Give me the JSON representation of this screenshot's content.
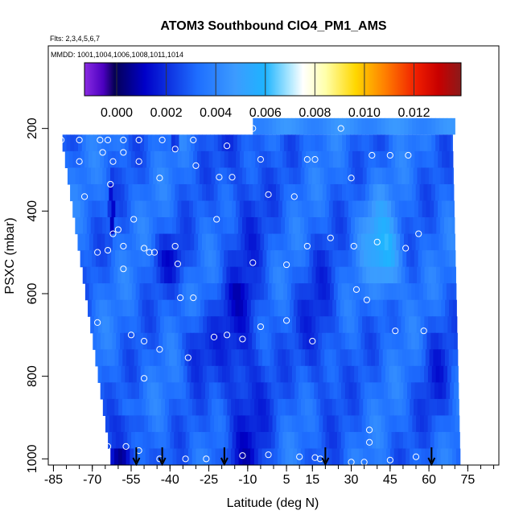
{
  "chart_data": {
    "type": "heatmap",
    "title": "ATOM3 Southbound ClO4_PM1_AMS",
    "info_flights": "Flts: 2,3,4,5,6,7",
    "info_dates": "MMDD: 1001,1004,1006,1008,1011,1014",
    "xlabel": "Latitude (deg N)",
    "ylabel": "PSXC (mbar)",
    "xlim": [
      -87,
      87
    ],
    "ylim": [
      1015,
      0
    ],
    "x_ticks": [
      -85,
      -70,
      -55,
      -40,
      -25,
      -10,
      5,
      15,
      30,
      45,
      60,
      75
    ],
    "x_tick_labels": [
      "-85",
      "-70",
      "-55",
      "-40",
      "-25",
      "-10",
      "5",
      "15",
      "30",
      "45",
      "60",
      "75"
    ],
    "y_ticks": [
      200,
      400,
      600,
      800,
      1000
    ],
    "y_tick_labels": [
      "200",
      "400",
      "600",
      "800",
      "1000"
    ],
    "colorbar": {
      "ticks": [
        0.0,
        0.002,
        0.004,
        0.006,
        0.008,
        0.01,
        0.012
      ],
      "tick_labels": [
        "0.000",
        "0.002",
        "0.004",
        "0.006",
        "0.008",
        "0.010",
        "0.012"
      ],
      "vmin": -0.0013,
      "vmax": 0.0139
    },
    "flight_markers_lat": [
      -53,
      -43,
      -19,
      20,
      61
    ],
    "sample_points": [
      [
        -82,
        228
      ],
      [
        -75,
        228
      ],
      [
        -67,
        228
      ],
      [
        -64,
        228
      ],
      [
        -58,
        228
      ],
      [
        -52,
        228
      ],
      [
        -43,
        228
      ],
      [
        -31,
        228
      ],
      [
        -8,
        200
      ],
      [
        26,
        200
      ],
      [
        76,
        200
      ],
      [
        -66,
        258
      ],
      [
        -58,
        258
      ],
      [
        -38,
        250
      ],
      [
        -18,
        242
      ],
      [
        -5,
        275
      ],
      [
        13,
        275
      ],
      [
        16,
        275
      ],
      [
        38,
        265
      ],
      [
        45,
        265
      ],
      [
        52,
        265
      ],
      [
        -75,
        280
      ],
      [
        -62,
        280
      ],
      [
        -52,
        280
      ],
      [
        -44,
        320
      ],
      [
        -30,
        290
      ],
      [
        -21,
        318
      ],
      [
        -16,
        318
      ],
      [
        -2,
        360
      ],
      [
        8,
        365
      ],
      [
        30,
        320
      ],
      [
        -73,
        365
      ],
      [
        -63,
        335
      ],
      [
        -54,
        420
      ],
      [
        -60,
        445
      ],
      [
        -62,
        455
      ],
      [
        -58,
        485
      ],
      [
        -50,
        490
      ],
      [
        -48,
        500
      ],
      [
        -46,
        500
      ],
      [
        -38,
        485
      ],
      [
        -22,
        420
      ],
      [
        -8,
        525
      ],
      [
        5,
        530
      ],
      [
        13,
        485
      ],
      [
        22,
        465
      ],
      [
        31,
        485
      ],
      [
        40,
        475
      ],
      [
        56,
        455
      ],
      [
        51,
        490
      ],
      [
        -68,
        500
      ],
      [
        -64,
        495
      ],
      [
        -58,
        540
      ],
      [
        -37,
        528
      ],
      [
        -36,
        610
      ],
      [
        -31,
        610
      ],
      [
        -23,
        705
      ],
      [
        -18,
        700
      ],
      [
        -12,
        710
      ],
      [
        -5,
        680
      ],
      [
        5,
        665
      ],
      [
        15,
        715
      ],
      [
        32,
        590
      ],
      [
        36,
        615
      ],
      [
        47,
        690
      ],
      [
        58,
        690
      ],
      [
        76,
        680
      ],
      [
        -68,
        670
      ],
      [
        -55,
        700
      ],
      [
        -50,
        715
      ],
      [
        -44,
        735
      ],
      [
        -33,
        755
      ],
      [
        -50,
        805
      ],
      [
        -52,
        980
      ],
      [
        -66,
        955
      ],
      [
        -64,
        970
      ],
      [
        -57,
        970
      ],
      [
        -44,
        1000
      ],
      [
        -34,
        1000
      ],
      [
        -26,
        1000
      ],
      [
        -12,
        992
      ],
      [
        -2,
        990
      ],
      [
        10,
        995
      ],
      [
        16,
        997
      ],
      [
        18,
        1000
      ],
      [
        30,
        1008
      ],
      [
        35,
        1008
      ],
      [
        37,
        930
      ],
      [
        37,
        960
      ],
      [
        45,
        1003
      ],
      [
        55,
        995
      ],
      [
        75,
        1008
      ]
    ]
  }
}
